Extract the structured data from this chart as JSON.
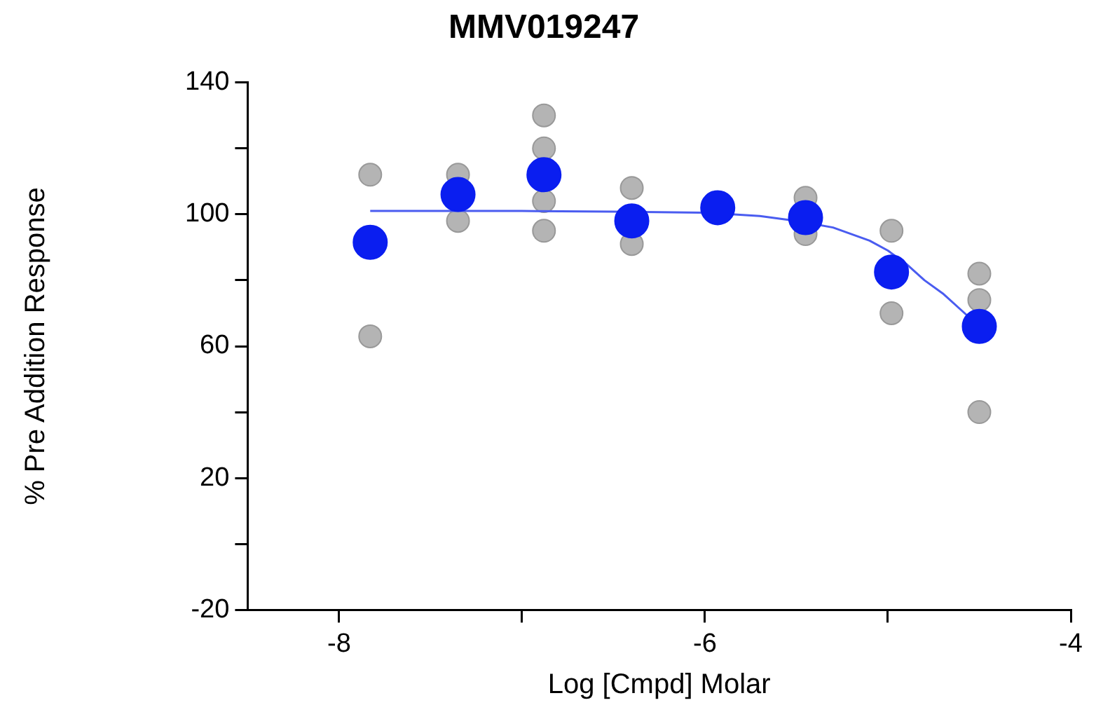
{
  "chart_data": {
    "type": "scatter",
    "title": "MMV019247",
    "xlabel": "Log [Cmpd] Molar",
    "ylabel": "% Pre Addition Response",
    "xlim": [
      -8.5,
      -4
    ],
    "xticks": [
      -8,
      {
        "value": -7,
        "label": null
      },
      -6,
      {
        "value": -5,
        "label": null
      },
      -4
    ],
    "ylim": [
      -20,
      140
    ],
    "yticks": [
      -20,
      {
        "value": 0,
        "label": null
      },
      20,
      {
        "value": 40,
        "label": null
      },
      60,
      {
        "value": 80,
        "label": null
      },
      100,
      {
        "value": 120,
        "label": null
      },
      140
    ],
    "marker": "circle",
    "legend": false,
    "series": [
      {
        "color": "#b4b4b4",
        "x": [
          -7.83,
          -7.83,
          -7.35,
          -7.35,
          -6.88,
          -6.88,
          -6.88,
          -6.88,
          -6.4,
          -6.4,
          -5.45,
          -5.45,
          -4.98,
          -4.98,
          -4.5,
          -4.5,
          -4.5
        ],
        "values": [
          112,
          63,
          112,
          98,
          130,
          120,
          104,
          95,
          108,
          91,
          105,
          94,
          95,
          70,
          82,
          74,
          40
        ]
      },
      {
        "type": "line",
        "marker": "none",
        "color": "#4a5cf0",
        "x": [
          -7.83,
          -7.4,
          -7,
          -6.5,
          -6,
          -5.7,
          -5.5,
          -5.3,
          -5.1,
          -5,
          -4.9,
          -4.8,
          -4.7,
          -4.6,
          -4.5
        ],
        "values": [
          101,
          101,
          101,
          100.8,
          100.5,
          99.5,
          98,
          96,
          92,
          89,
          85,
          80,
          76,
          71,
          66
        ]
      },
      {
        "color": "#0a1ef0",
        "x": [
          -7.83,
          -7.35,
          -6.88,
          -6.4,
          -5.93,
          -5.45,
          -4.98,
          -4.5
        ],
        "values": [
          91.5,
          106,
          112,
          98,
          102,
          99,
          82.5,
          66
        ]
      }
    ]
  }
}
